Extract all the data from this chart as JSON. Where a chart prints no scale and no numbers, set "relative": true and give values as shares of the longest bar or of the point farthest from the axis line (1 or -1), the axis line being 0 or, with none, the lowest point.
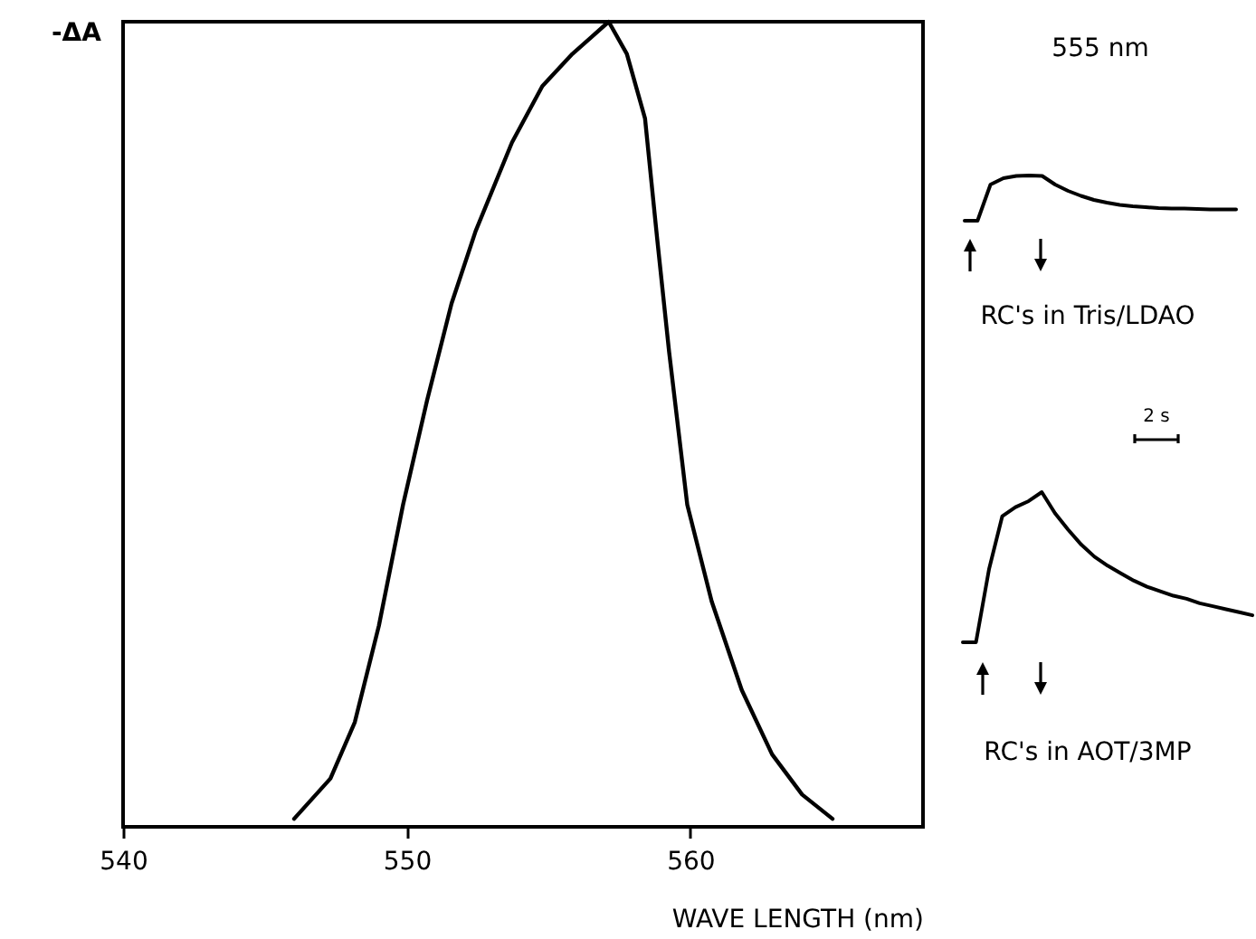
{
  "chart_data": [
    {
      "type": "line",
      "xlabel": "WAVE LENGTH (nm)",
      "ylabel": "-ΔA",
      "relative": true,
      "xlim": [
        540,
        568.2
      ],
      "xticks": [
        540,
        550,
        560
      ],
      "x": [
        546.03,
        547.31,
        548.17,
        549.02,
        549.87,
        550.72,
        551.58,
        552.43,
        553.71,
        554.78,
        555.84,
        556.48,
        557.12,
        557.76,
        558.4,
        558.83,
        559.25,
        559.89,
        560.75,
        561.81,
        562.88,
        563.94,
        565.01
      ],
      "series": [
        {
          "color": "#000000",
          "values": [
            0.01,
            0.06,
            0.13,
            0.25,
            0.4,
            0.53,
            0.65,
            0.74,
            0.85,
            0.92,
            0.96,
            0.98,
            1.0,
            0.96,
            0.88,
            0.73,
            0.59,
            0.4,
            0.28,
            0.17,
            0.09,
            0.04,
            0.01
          ]
        }
      ]
    },
    {
      "type": "line",
      "title": "555 nm",
      "relative": true,
      "annotations": [
        "RC's in Tris/LDAO"
      ],
      "categories": [
        null,
        null,
        null,
        null,
        null,
        null,
        null,
        null,
        null,
        null,
        null,
        null,
        null,
        null,
        null,
        null,
        null,
        null,
        null,
        null,
        null,
        null
      ],
      "series": [
        {
          "color": "#000000",
          "values": [
            0,
            0,
            0.8,
            0.94,
            0.99,
            1.0,
            0.99,
            0.8,
            0.66,
            0.55,
            0.46,
            0.4,
            0.35,
            0.32,
            0.3,
            0.28,
            0.27,
            0.27,
            0.26,
            0.25,
            0.25,
            0.25
          ]
        }
      ]
    },
    {
      "type": "line",
      "relative": true,
      "annotations": [
        "2 s",
        "RC's in AOT/3MP"
      ],
      "categories": [
        null,
        null,
        null,
        null,
        null,
        null,
        null,
        null,
        null,
        null,
        null,
        null,
        null,
        null,
        null,
        null,
        null,
        null,
        null,
        null,
        null,
        null,
        null
      ],
      "series": [
        {
          "color": "#000000",
          "values": [
            0,
            0,
            0.49,
            0.84,
            0.9,
            0.94,
            1.0,
            0.86,
            0.75,
            0.65,
            0.57,
            0.51,
            0.46,
            0.41,
            0.37,
            0.34,
            0.31,
            0.29,
            0.26,
            0.24,
            0.22,
            0.2,
            0.18
          ]
        }
      ]
    }
  ]
}
